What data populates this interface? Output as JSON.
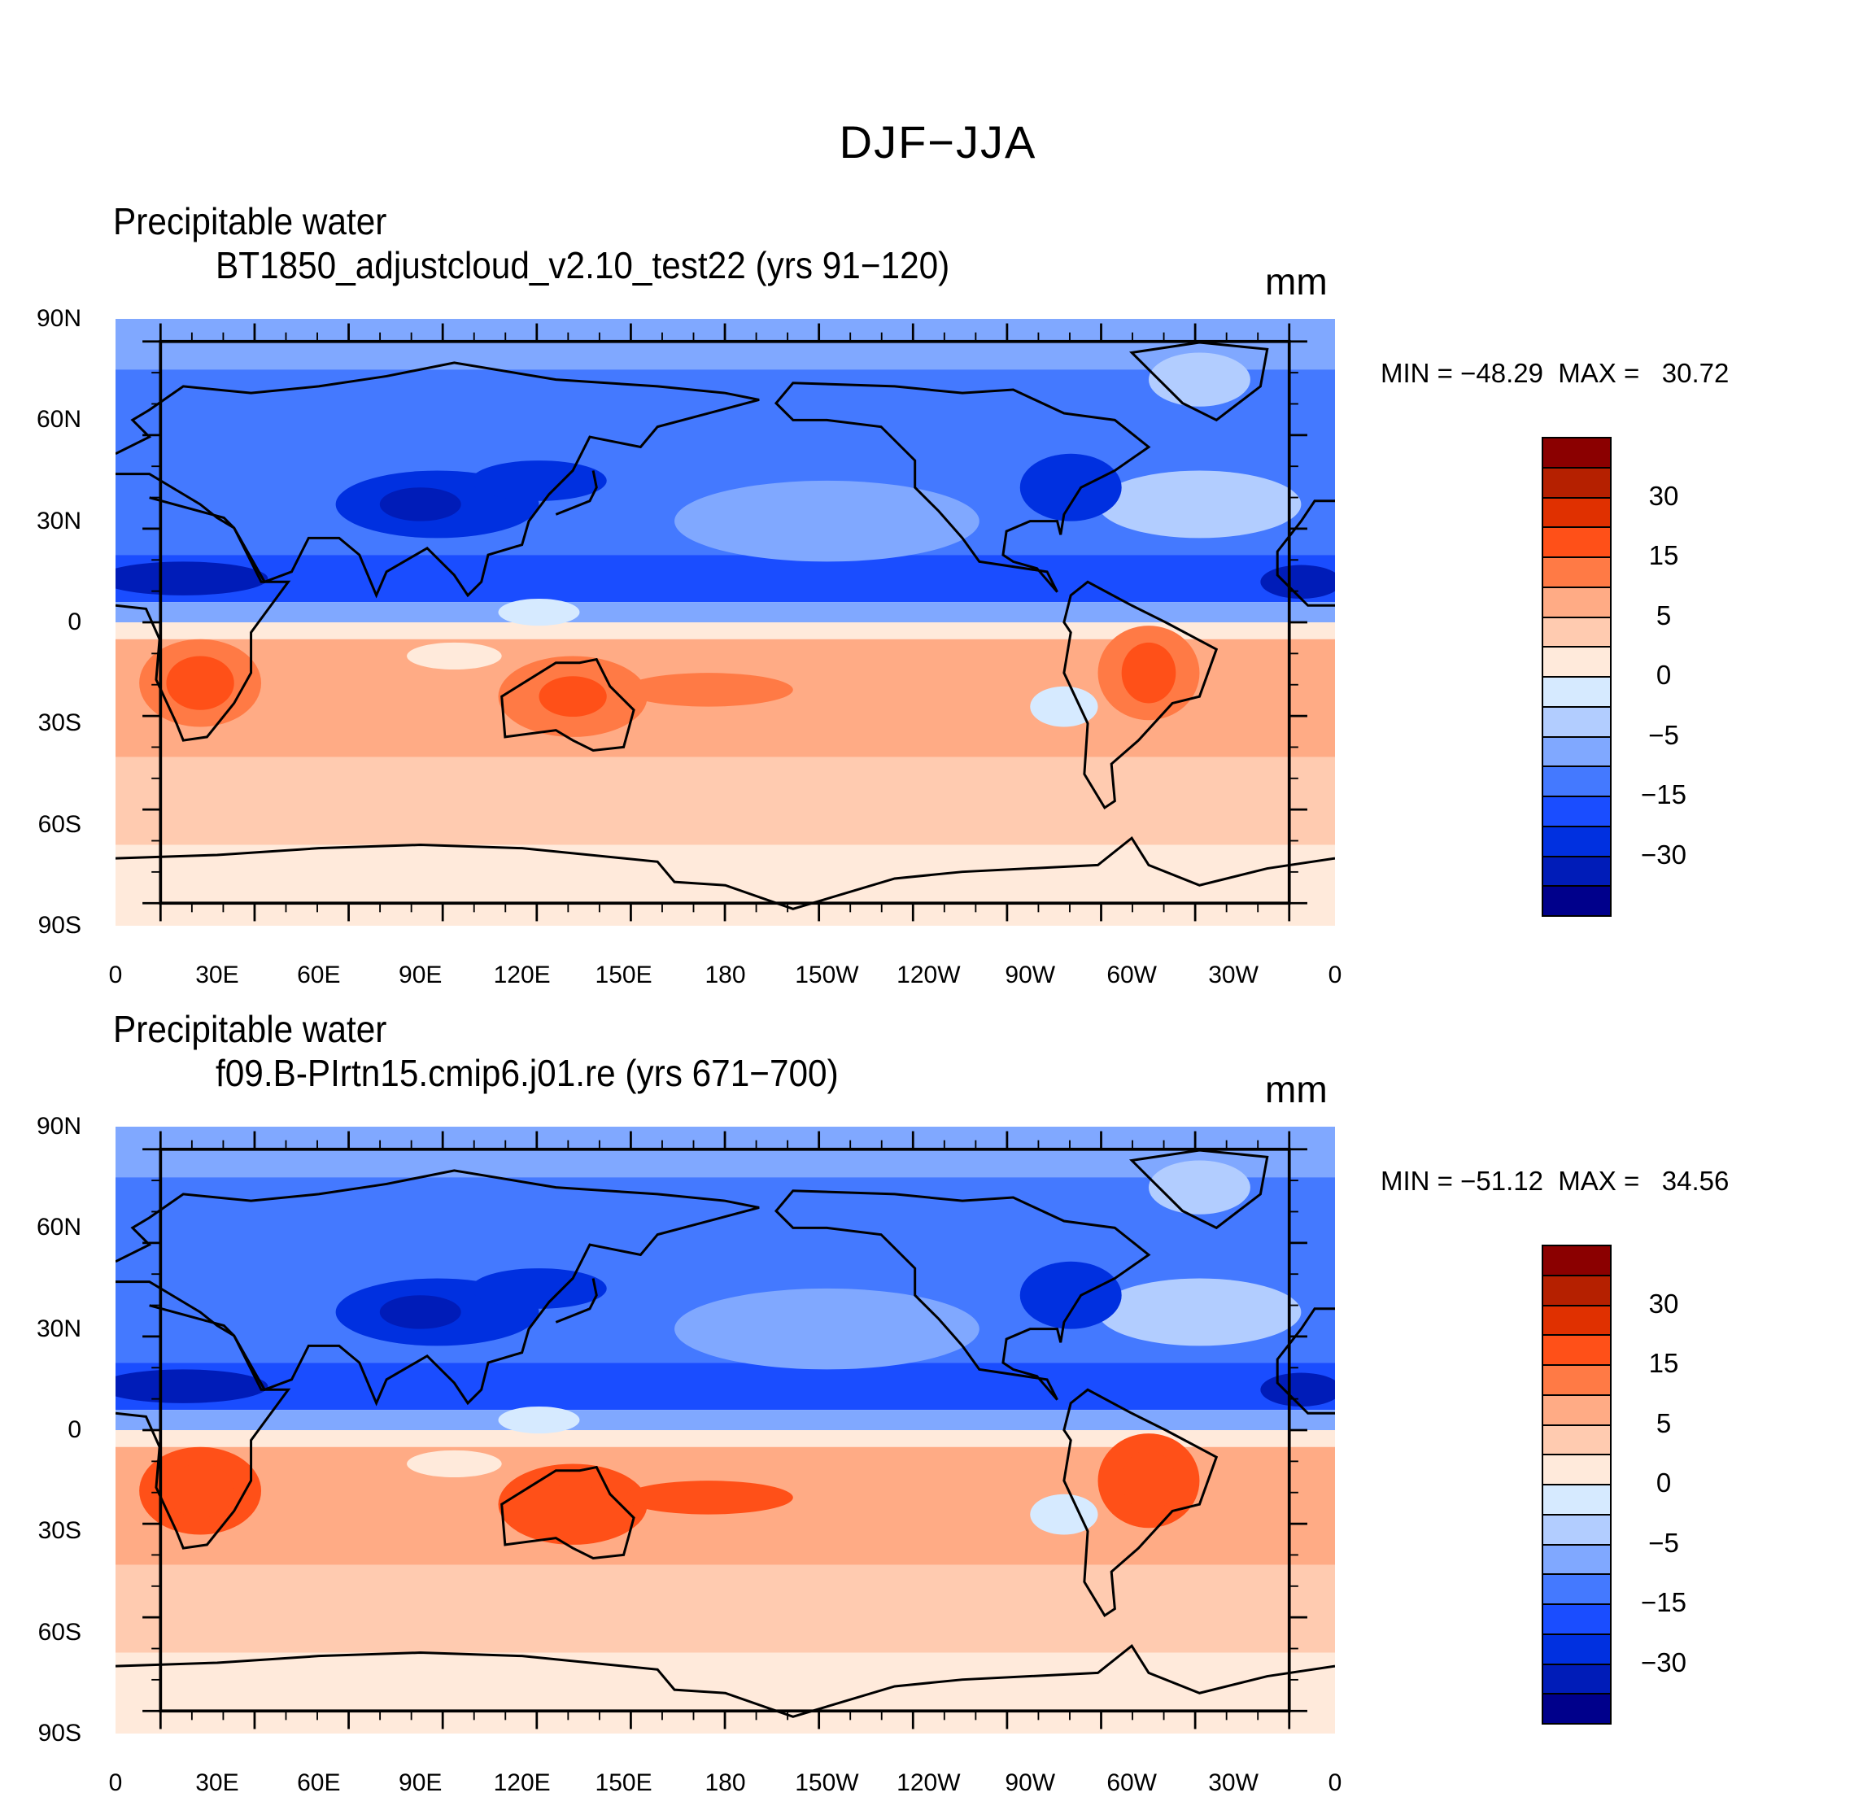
{
  "chart_data": {
    "type": "heatmap",
    "subtype": "filled-contour global map",
    "title": "DJF−JJA",
    "levels": [
      -40,
      -30,
      -20,
      -15,
      -10,
      -5,
      -2,
      0,
      2,
      5,
      10,
      15,
      20,
      30,
      40
    ],
    "colorbar_labels": [
      "30",
      "15",
      "5",
      "0",
      "−5",
      "−15",
      "−30"
    ],
    "colors": [
      "#8b0000",
      "#b52000",
      "#e03000",
      "#ff5018",
      "#ff7a45",
      "#ffab85",
      "#ffcbb0",
      "#ffeadb",
      "#d6eaff",
      "#b2cdff",
      "#80a8ff",
      "#4479ff",
      "#1a4dff",
      "#0030e0",
      "#001cb8",
      "#00008b"
    ],
    "lon_ticks": [
      "0",
      "30E",
      "60E",
      "90E",
      "120E",
      "150E",
      "180",
      "150W",
      "120W",
      "90W",
      "60W",
      "30W",
      "0"
    ],
    "lat_ticks": [
      "90N",
      "60N",
      "30N",
      "0",
      "30S",
      "60S",
      "90S"
    ],
    "xlim": [
      0,
      360
    ],
    "ylim": [
      -90,
      90
    ],
    "panels": [
      {
        "left_title": "Precipitable water",
        "center_title": "BT1850_adjustcloud_v2.10_test22 (yrs 91−120)",
        "units": "mm",
        "min_text": "MIN = −48.29  MAX =   30.72",
        "min": -48.29,
        "max": 30.72
      },
      {
        "left_title": "Precipitable water",
        "center_title": "f09.B-PIrtn15.cmip6.j01.re (yrs 671−700)",
        "units": "mm",
        "min_text": "MIN = −51.12  MAX =   34.56",
        "min": -51.12,
        "max": 34.56
      }
    ]
  }
}
